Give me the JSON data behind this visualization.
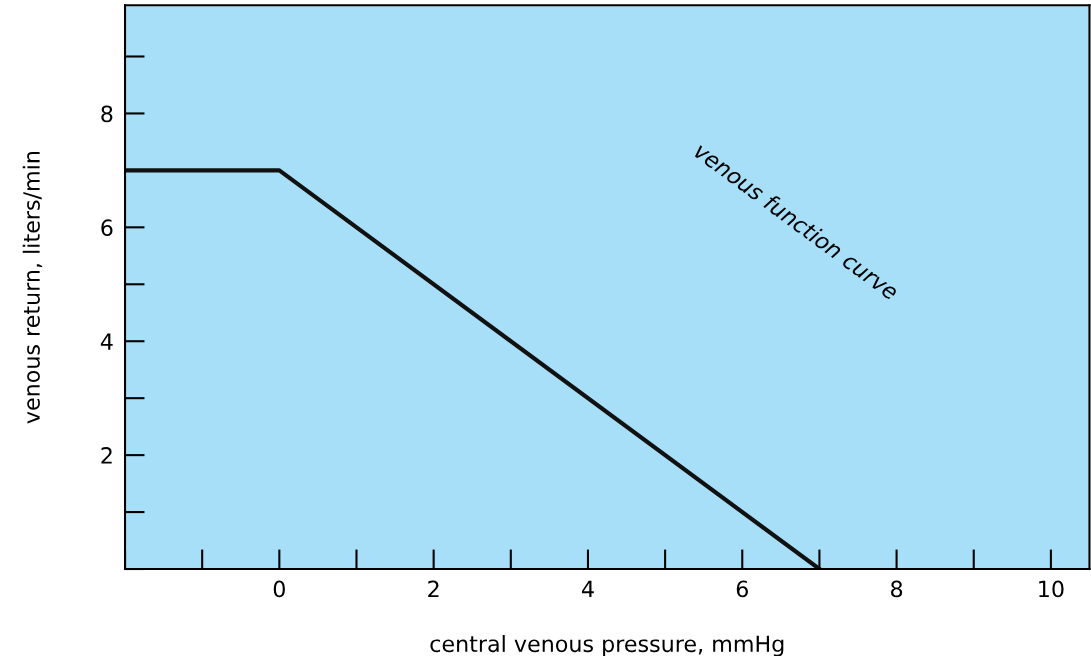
{
  "chart_data": {
    "type": "line",
    "xlabel": "central venous pressure, mmHg",
    "ylabel": "venous return, liters/min",
    "x": [
      -2,
      0,
      7
    ],
    "series": [
      {
        "color": "#111111",
        "values": [
          7,
          7,
          0
        ]
      }
    ],
    "xlim": [
      -2,
      10.5
    ],
    "ylim": [
      0,
      9.9
    ],
    "xticks": [
      0,
      2,
      4,
      6,
      8,
      10
    ],
    "yticks": [
      2,
      4,
      6,
      8
    ],
    "annotations": [
      "venous function curve"
    ],
    "grid": false,
    "legend": false,
    "marker": "none",
    "line_style": "solid"
  }
}
